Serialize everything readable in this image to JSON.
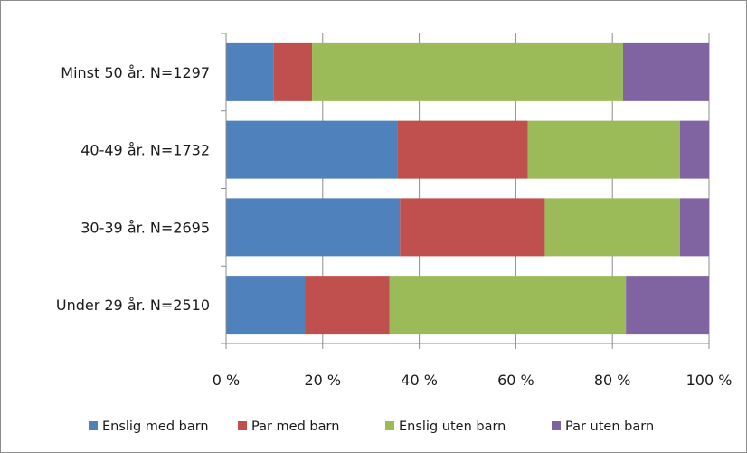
{
  "chart_data": {
    "type": "bar",
    "orientation": "horizontal",
    "stacked": "percent",
    "categories": [
      "Under 29 år. N=2510",
      "30-39 år. N=2695",
      "40-49 år. N=1732",
      "Minst 50 år. N=1297"
    ],
    "series": [
      {
        "name": "Enslig med barn",
        "color": "#4f81bd",
        "values": [
          16.3,
          36.0,
          35.5,
          9.8
        ]
      },
      {
        "name": "Par med barn",
        "color": "#c0504d",
        "values": [
          17.5,
          30.0,
          27.0,
          8.0
        ]
      },
      {
        "name": "Enslig uten barn",
        "color": "#9bbb59",
        "values": [
          49.0,
          28.0,
          31.5,
          64.4
        ]
      },
      {
        "name": "Par uten barn",
        "color": "#8064a2",
        "values": [
          17.2,
          6.0,
          6.0,
          17.8
        ]
      }
    ],
    "xticks": [
      "0 %",
      "20 %",
      "40 %",
      "60 %",
      "80 %",
      "100 %"
    ],
    "xlim": [
      0,
      100
    ],
    "grid": "vertical",
    "legend_position": "bottom",
    "title": "",
    "xlabel": "",
    "ylabel": ""
  }
}
